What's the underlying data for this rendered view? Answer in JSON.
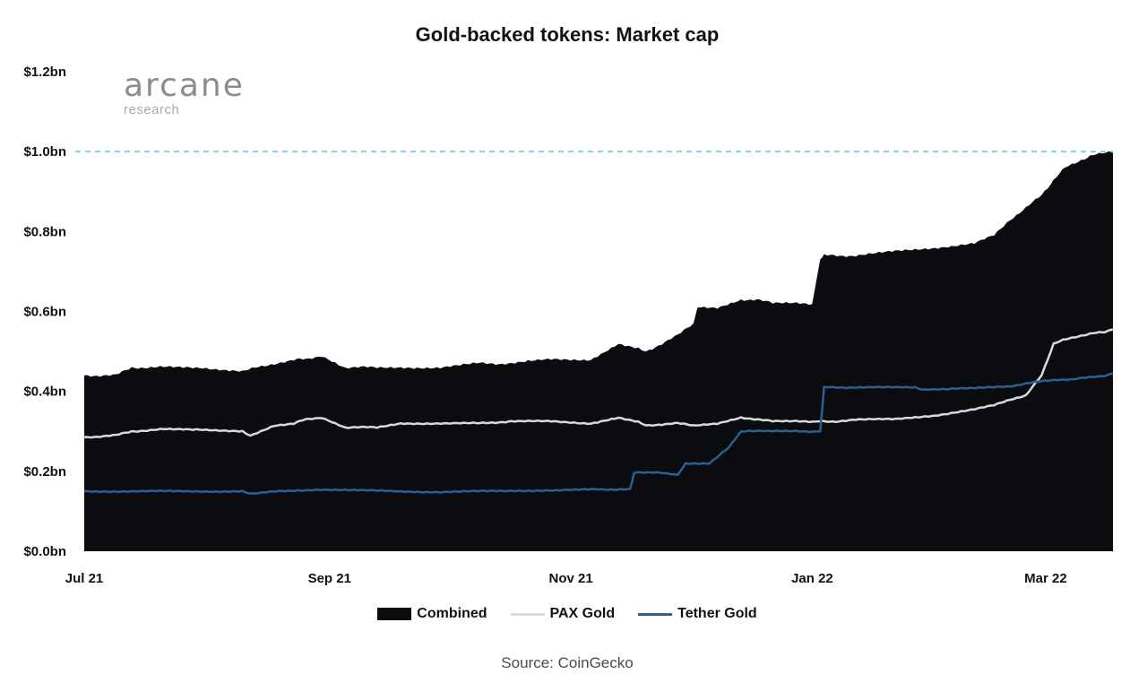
{
  "chart_data": {
    "type": "area",
    "title": "Gold-backed tokens: Market cap",
    "xlabel": "",
    "ylabel": "",
    "x_ticks": [
      "Jul 21",
      "Sep 21",
      "Nov 21",
      "Jan 22",
      "Mar 22"
    ],
    "y_ticks": [
      "$0.0bn",
      "$0.2bn",
      "$0.4bn",
      "$0.6bn",
      "$0.8bn",
      "$1.0bn",
      "$1.2bn"
    ],
    "ylim": [
      0,
      1.2
    ],
    "xlim_days": [
      0,
      260
    ],
    "tick_days": [
      0,
      62,
      123,
      184,
      243
    ],
    "reference_line": {
      "y": 1.0,
      "style": "dashed",
      "color": "#7fd3df"
    },
    "grid": false,
    "legend_position": "bottom",
    "series": [
      {
        "name": "Combined",
        "kind": "area",
        "color": "#0b0c10",
        "x": [
          0,
          8,
          12,
          20,
          30,
          40,
          48,
          53,
          56,
          60,
          66,
          70,
          74,
          80,
          90,
          100,
          108,
          118,
          128,
          135,
          140,
          142,
          150,
          154,
          155,
          160,
          166,
          170,
          174,
          180,
          184,
          186,
          187,
          195,
          205,
          215,
          225,
          230,
          234,
          238,
          242,
          245,
          248,
          252,
          255,
          258,
          260
        ],
        "y": [
          0.44,
          0.44,
          0.46,
          0.46,
          0.46,
          0.45,
          0.47,
          0.48,
          0.48,
          0.49,
          0.46,
          0.46,
          0.46,
          0.46,
          0.46,
          0.47,
          0.47,
          0.48,
          0.48,
          0.52,
          0.51,
          0.5,
          0.54,
          0.57,
          0.61,
          0.61,
          0.63,
          0.63,
          0.62,
          0.62,
          0.62,
          0.73,
          0.74,
          0.74,
          0.75,
          0.76,
          0.77,
          0.79,
          0.83,
          0.86,
          0.89,
          0.93,
          0.96,
          0.98,
          0.99,
          1.0,
          1.0
        ]
      },
      {
        "name": "PAX Gold",
        "kind": "line",
        "color": "#d9d9d9",
        "x": [
          0,
          8,
          12,
          20,
          30,
          40,
          42,
          48,
          53,
          56,
          60,
          66,
          70,
          74,
          80,
          90,
          100,
          108,
          118,
          128,
          135,
          140,
          142,
          150,
          154,
          160,
          166,
          170,
          174,
          180,
          184,
          186,
          190,
          195,
          205,
          215,
          225,
          230,
          234,
          238,
          242,
          245,
          248,
          252,
          255,
          258,
          260
        ],
        "y": [
          0.285,
          0.29,
          0.3,
          0.305,
          0.305,
          0.3,
          0.29,
          0.315,
          0.32,
          0.33,
          0.335,
          0.31,
          0.31,
          0.31,
          0.32,
          0.32,
          0.32,
          0.325,
          0.325,
          0.32,
          0.335,
          0.325,
          0.315,
          0.32,
          0.315,
          0.32,
          0.335,
          0.33,
          0.325,
          0.325,
          0.325,
          0.325,
          0.325,
          0.33,
          0.33,
          0.34,
          0.355,
          0.365,
          0.38,
          0.39,
          0.44,
          0.52,
          0.53,
          0.54,
          0.545,
          0.55,
          0.555
        ]
      },
      {
        "name": "Tether Gold",
        "kind": "line",
        "color": "#2d5f8f",
        "x": [
          0,
          10,
          20,
          30,
          40,
          42,
          50,
          60,
          70,
          80,
          90,
          100,
          110,
          120,
          130,
          138,
          139,
          145,
          150,
          152,
          158,
          163,
          166,
          168,
          175,
          180,
          184,
          186,
          187,
          195,
          205,
          210,
          212,
          220,
          225,
          230,
          234,
          238,
          242,
          246,
          250,
          254,
          258,
          260
        ],
        "y": [
          0.15,
          0.15,
          0.15,
          0.15,
          0.15,
          0.145,
          0.15,
          0.155,
          0.152,
          0.15,
          0.148,
          0.15,
          0.152,
          0.152,
          0.155,
          0.155,
          0.197,
          0.197,
          0.19,
          0.22,
          0.22,
          0.26,
          0.3,
          0.3,
          0.3,
          0.3,
          0.3,
          0.3,
          0.41,
          0.41,
          0.41,
          0.41,
          0.403,
          0.408,
          0.408,
          0.41,
          0.413,
          0.42,
          0.425,
          0.43,
          0.43,
          0.435,
          0.44,
          0.445
        ]
      }
    ]
  },
  "logo": {
    "main": "arcane",
    "sub": "research"
  },
  "source": "Source: CoinGecko"
}
